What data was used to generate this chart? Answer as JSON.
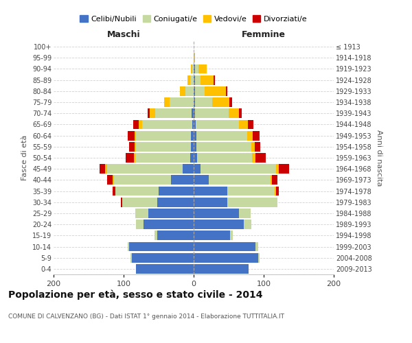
{
  "age_groups": [
    "0-4",
    "5-9",
    "10-14",
    "15-19",
    "20-24",
    "25-29",
    "30-34",
    "35-39",
    "40-44",
    "45-49",
    "50-54",
    "55-59",
    "60-64",
    "65-69",
    "70-74",
    "75-79",
    "80-84",
    "85-89",
    "90-94",
    "95-99",
    "100+"
  ],
  "birth_years": [
    "2009-2013",
    "2004-2008",
    "1999-2003",
    "1994-1998",
    "1989-1993",
    "1984-1988",
    "1979-1983",
    "1974-1978",
    "1969-1973",
    "1964-1968",
    "1959-1963",
    "1954-1958",
    "1949-1953",
    "1944-1948",
    "1939-1943",
    "1934-1938",
    "1929-1933",
    "1924-1928",
    "1919-1923",
    "1914-1918",
    "≤ 1913"
  ],
  "males": {
    "celibe": [
      82,
      88,
      92,
      52,
      72,
      65,
      52,
      50,
      32,
      16,
      5,
      4,
      4,
      2,
      3,
      0,
      0,
      0,
      0,
      0,
      0
    ],
    "coniugato": [
      0,
      2,
      2,
      4,
      10,
      18,
      50,
      62,
      82,
      108,
      78,
      78,
      78,
      72,
      52,
      34,
      12,
      5,
      2,
      0,
      0
    ],
    "vedovo": [
      0,
      0,
      0,
      0,
      0,
      0,
      0,
      0,
      2,
      2,
      2,
      2,
      2,
      4,
      8,
      8,
      8,
      4,
      2,
      0,
      0
    ],
    "divorziato": [
      0,
      0,
      0,
      0,
      0,
      0,
      2,
      4,
      8,
      8,
      12,
      8,
      10,
      8,
      3,
      0,
      0,
      0,
      0,
      0,
      0
    ]
  },
  "females": {
    "nubile": [
      78,
      92,
      88,
      52,
      72,
      65,
      48,
      48,
      22,
      10,
      5,
      4,
      4,
      3,
      2,
      2,
      2,
      2,
      2,
      0,
      0
    ],
    "coniugata": [
      0,
      2,
      4,
      4,
      10,
      16,
      72,
      68,
      88,
      108,
      78,
      78,
      72,
      62,
      48,
      24,
      14,
      8,
      5,
      0,
      0
    ],
    "vedova": [
      0,
      0,
      0,
      0,
      0,
      0,
      0,
      2,
      2,
      4,
      5,
      5,
      8,
      12,
      15,
      25,
      30,
      18,
      12,
      2,
      0
    ],
    "divorziata": [
      0,
      0,
      0,
      0,
      0,
      0,
      0,
      4,
      8,
      14,
      15,
      8,
      10,
      8,
      4,
      4,
      2,
      2,
      0,
      0,
      0
    ]
  },
  "colors": {
    "celibe": "#4472c4",
    "coniugato": "#c5d9a0",
    "vedovo": "#ffc000",
    "divorziato": "#cc0000"
  },
  "title": "Popolazione per età, sesso e stato civile - 2014",
  "subtitle": "COMUNE DI CALVENZANO (BG) - Dati ISTAT 1° gennaio 2014 - Elaborazione TUTTITALIA.IT",
  "ylabel_left": "Fasce di età",
  "ylabel_right": "Anni di nascita",
  "xlabel_left": "Maschi",
  "xlabel_right": "Femmine",
  "xlim": 200,
  "grid_color": "#cccccc",
  "legend_labels": [
    "Celibi/Nubili",
    "Coniugati/e",
    "Vedovi/e",
    "Divorziati/e"
  ]
}
